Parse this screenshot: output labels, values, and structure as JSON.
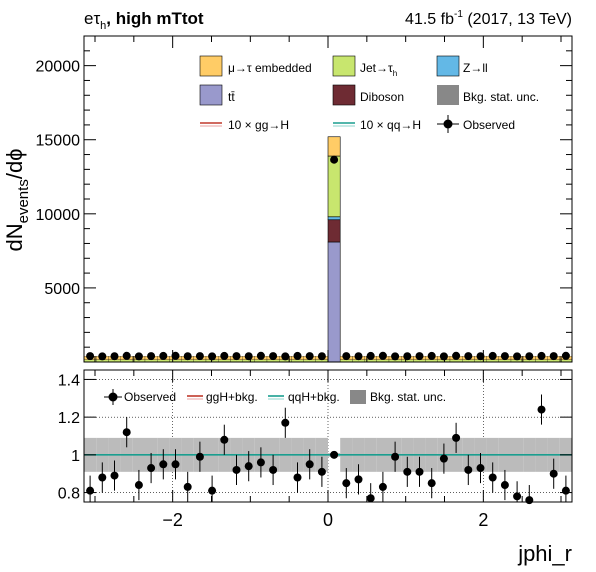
{
  "header": {
    "channel_prefix": "eτ",
    "channel_sub": "h",
    "channel_suffix": ", high mTtot",
    "lumi_value": "41.5 fb",
    "lumi_sup": "-1",
    "lumi_suffix": " (2017, 13 TeV)"
  },
  "legend_top": {
    "embedded": "μ→τ embedded",
    "jet_prefix": "Jet→τ",
    "jet_sub": "h",
    "zll": "Z→ll",
    "ttbar": "tt̄",
    "diboson": "Diboson",
    "bkg_unc": "Bkg. stat. unc.",
    "ggh": "10 × gg→H",
    "qqh": "10 × qq→H",
    "observed": "Observed"
  },
  "legend_ratio": {
    "observed": "Observed",
    "ggh": "ggH+bkg.",
    "qqh": "qqH+bkg.",
    "bkg_unc": "Bkg. stat. unc."
  },
  "colors": {
    "embedded": "#ffcc66",
    "jetfake": "#c8e66e",
    "zll": "#63b8e6",
    "ttbar": "#9999cc",
    "diboson": "#6e2b33",
    "unc_band": "#bbbbbb",
    "ggh_line": "#c0392b",
    "qqh_line": "#1a9e8f",
    "ratio_line": "#1a9e8f"
  },
  "chart_data": [
    {
      "type": "bar",
      "stacked": true,
      "xlabel": "jphi_r",
      "ylabel": "dN_events/dϕ",
      "xlim": [
        -3.14159,
        3.14159
      ],
      "ylim": [
        0,
        22000
      ],
      "yticks": [
        5000,
        10000,
        15000,
        20000
      ],
      "xticks": [
        -2,
        0,
        2
      ],
      "nbins": 40,
      "series": [
        {
          "name": "tt̄",
          "key": "ttbar",
          "values": [
            5,
            5,
            5,
            5,
            5,
            5,
            5,
            5,
            5,
            5,
            5,
            5,
            5,
            5,
            5,
            5,
            5,
            5,
            5,
            5,
            8100,
            5,
            5,
            5,
            5,
            5,
            5,
            5,
            5,
            5,
            5,
            5,
            5,
            5,
            5,
            5,
            5,
            5,
            5,
            5
          ]
        },
        {
          "name": "Diboson",
          "key": "diboson",
          "values": [
            5,
            5,
            5,
            5,
            5,
            5,
            5,
            5,
            5,
            5,
            5,
            5,
            5,
            5,
            5,
            5,
            5,
            5,
            5,
            5,
            1500,
            5,
            5,
            5,
            5,
            5,
            5,
            5,
            5,
            5,
            5,
            5,
            5,
            5,
            5,
            5,
            5,
            5,
            5,
            5
          ]
        },
        {
          "name": "Z→ll",
          "key": "zll",
          "values": [
            10,
            10,
            10,
            10,
            10,
            10,
            10,
            10,
            10,
            10,
            10,
            10,
            10,
            10,
            10,
            10,
            10,
            10,
            10,
            10,
            200,
            10,
            10,
            10,
            10,
            10,
            10,
            10,
            10,
            10,
            10,
            10,
            10,
            10,
            10,
            10,
            10,
            10,
            10,
            10
          ]
        },
        {
          "name": "Jet→τh",
          "key": "jetfake",
          "values": [
            140,
            140,
            140,
            140,
            140,
            140,
            140,
            140,
            140,
            140,
            140,
            140,
            140,
            140,
            140,
            140,
            140,
            140,
            140,
            140,
            4100,
            140,
            140,
            140,
            140,
            140,
            140,
            140,
            140,
            140,
            140,
            140,
            140,
            140,
            140,
            140,
            140,
            140,
            140,
            140
          ]
        },
        {
          "name": "μ→τ embedded",
          "key": "embedded",
          "values": [
            220,
            220,
            220,
            220,
            220,
            220,
            220,
            220,
            220,
            220,
            220,
            220,
            220,
            220,
            220,
            220,
            220,
            220,
            220,
            220,
            1300,
            220,
            220,
            220,
            220,
            220,
            220,
            220,
            220,
            220,
            220,
            220,
            220,
            220,
            220,
            220,
            220,
            220,
            220,
            220
          ]
        }
      ],
      "observed": [
        400,
        380,
        390,
        420,
        380,
        400,
        410,
        420,
        390,
        400,
        380,
        410,
        400,
        390,
        420,
        400,
        380,
        410,
        400,
        390,
        13650,
        400,
        390,
        410,
        420,
        380,
        390,
        400,
        410,
        380,
        420,
        400,
        390,
        410,
        400,
        380,
        390,
        410,
        400,
        420
      ],
      "observed_err": [
        20,
        20,
        20,
        20,
        20,
        20,
        20,
        20,
        20,
        20,
        20,
        20,
        20,
        20,
        20,
        20,
        20,
        20,
        20,
        20,
        117,
        20,
        20,
        20,
        20,
        20,
        20,
        20,
        20,
        20,
        20,
        20,
        20,
        20,
        20,
        20,
        20,
        20,
        20,
        20
      ]
    },
    {
      "type": "scatter",
      "xlabel": "jphi_r",
      "ylabel": "",
      "xlim": [
        -3.14159,
        3.14159
      ],
      "ylim": [
        0.75,
        1.45
      ],
      "yticks": [
        0.8,
        1.0,
        1.2,
        1.4
      ],
      "xticks": [
        -2,
        0,
        2
      ],
      "ratio_line": 1.0,
      "unc_band_halfwidth": [
        0.09,
        0.09,
        0.09,
        0.09,
        0.09,
        0.09,
        0.09,
        0.09,
        0.09,
        0.09,
        0.09,
        0.09,
        0.09,
        0.09,
        0.09,
        0.09,
        0.09,
        0.09,
        0.09,
        0.09,
        0.01,
        0.09,
        0.09,
        0.09,
        0.09,
        0.09,
        0.09,
        0.09,
        0.09,
        0.09,
        0.09,
        0.09,
        0.09,
        0.09,
        0.09,
        0.09,
        0.09,
        0.09,
        0.09,
        0.09
      ],
      "observed_ratio": [
        0.81,
        0.88,
        0.89,
        1.12,
        0.84,
        0.93,
        0.95,
        0.95,
        0.83,
        0.99,
        0.81,
        1.08,
        0.92,
        0.94,
        0.96,
        0.92,
        1.17,
        0.88,
        0.95,
        0.91,
        1.0,
        0.85,
        0.87,
        0.77,
        0.83,
        0.99,
        0.91,
        0.91,
        0.85,
        0.98,
        1.09,
        0.92,
        0.93,
        0.88,
        0.84,
        0.78,
        0.76,
        1.24,
        0.9,
        0.81
      ],
      "observed_ratio_err": [
        0.08,
        0.08,
        0.08,
        0.08,
        0.08,
        0.08,
        0.08,
        0.08,
        0.08,
        0.08,
        0.08,
        0.08,
        0.08,
        0.08,
        0.08,
        0.08,
        0.08,
        0.08,
        0.08,
        0.08,
        0.01,
        0.08,
        0.08,
        0.08,
        0.08,
        0.08,
        0.08,
        0.08,
        0.08,
        0.08,
        0.08,
        0.08,
        0.08,
        0.08,
        0.08,
        0.08,
        0.08,
        0.08,
        0.08,
        0.08
      ],
      "tick_labels": [
        "0.8",
        "1",
        "1.2",
        "1.4"
      ],
      "x_tick_labels": [
        "−2",
        "0",
        "2"
      ],
      "top_y_tick_labels": [
        "5000",
        "10000",
        "15000",
        "20000"
      ]
    }
  ]
}
